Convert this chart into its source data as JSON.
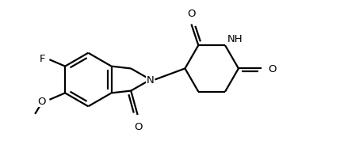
{
  "background_color": "#ffffff",
  "line_color": "#000000",
  "line_width": 1.6,
  "font_size": 9.5,
  "figsize": [
    4.29,
    2.03
  ],
  "dpi": 100,
  "xlim": [
    0,
    9
  ],
  "ylim": [
    0,
    4.3
  ]
}
